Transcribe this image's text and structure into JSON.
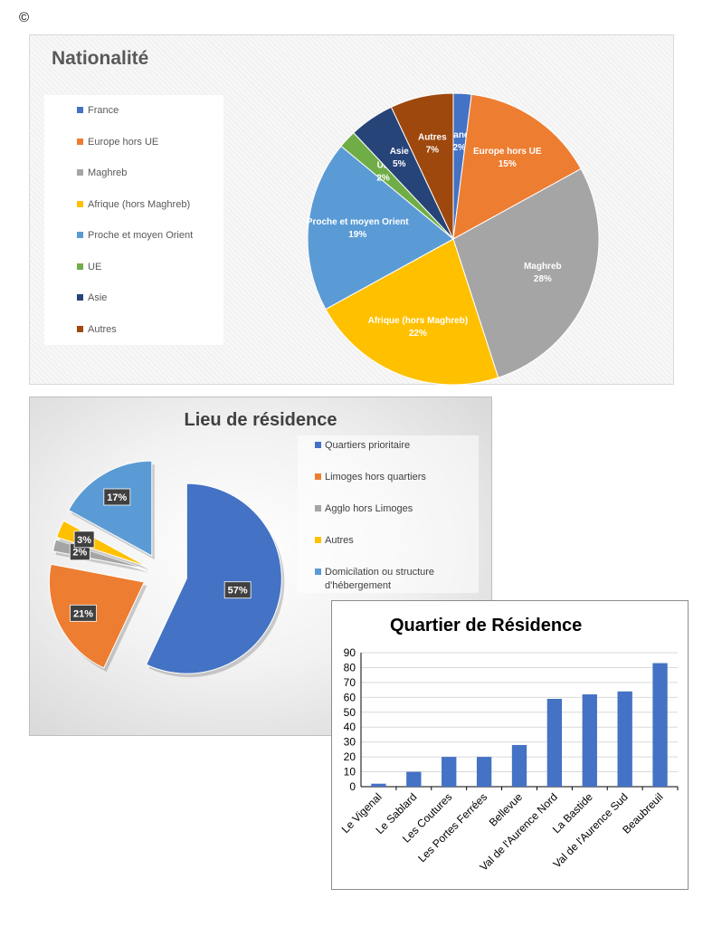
{
  "copyright": "©",
  "chart_data": [
    {
      "type": "pie",
      "title": "Nationalité",
      "legend_position": "left",
      "categories": [
        "France",
        "Europe hors UE",
        "Maghreb",
        "Afrique (hors Maghreb)",
        "Proche et moyen Orient",
        "UE",
        "Asie",
        "Autres"
      ],
      "values": [
        2,
        15,
        28,
        22,
        19,
        2,
        5,
        7
      ],
      "labels": [
        "France\n2%",
        "Europe hors UE\n15%",
        "Maghreb\n28%",
        "Afrique (hors Maghreb)\n22%",
        "Proche et moyen Orient\n19%",
        "UE\n2%",
        "Asie\n5%",
        "Autres\n7%"
      ],
      "colors": [
        "#4472C4",
        "#ED7D31",
        "#A5A5A5",
        "#FFC000",
        "#5B9BD5",
        "#70AD47",
        "#264478",
        "#9E480E"
      ]
    },
    {
      "type": "pie",
      "title": "Lieu de résidence",
      "legend_position": "right",
      "exploded": true,
      "categories": [
        "Quartiers prioritaire",
        "Limoges hors quartiers",
        "Agglo hors Limoges",
        "Autres",
        "Domicilation ou structure d'hébergement"
      ],
      "values": [
        57,
        21,
        2,
        3,
        17
      ],
      "labels": [
        "57%",
        "21%",
        "2%",
        "3%",
        "17%"
      ],
      "colors": [
        "#4472C4",
        "#ED7D31",
        "#A5A5A5",
        "#FFC000",
        "#5B9BD5"
      ]
    },
    {
      "type": "bar",
      "title": "Quartier de Résidence",
      "categories": [
        "Le Vigenal",
        "Le Sablard",
        "Les Coutures",
        "Les Portes Ferrées",
        "Bellevue",
        "Val de l'Aurence Nord",
        "La Bastide",
        "Val de l'Aurence Sud",
        "Beaubreuil"
      ],
      "values": [
        2,
        10,
        20,
        20,
        28,
        59,
        62,
        64,
        83
      ],
      "ylim": [
        0,
        90
      ],
      "yticks": [
        "0",
        "10",
        "20",
        "30",
        "40",
        "50",
        "60",
        "70",
        "80",
        "90"
      ],
      "grid": true,
      "color": "#4472C4"
    }
  ]
}
